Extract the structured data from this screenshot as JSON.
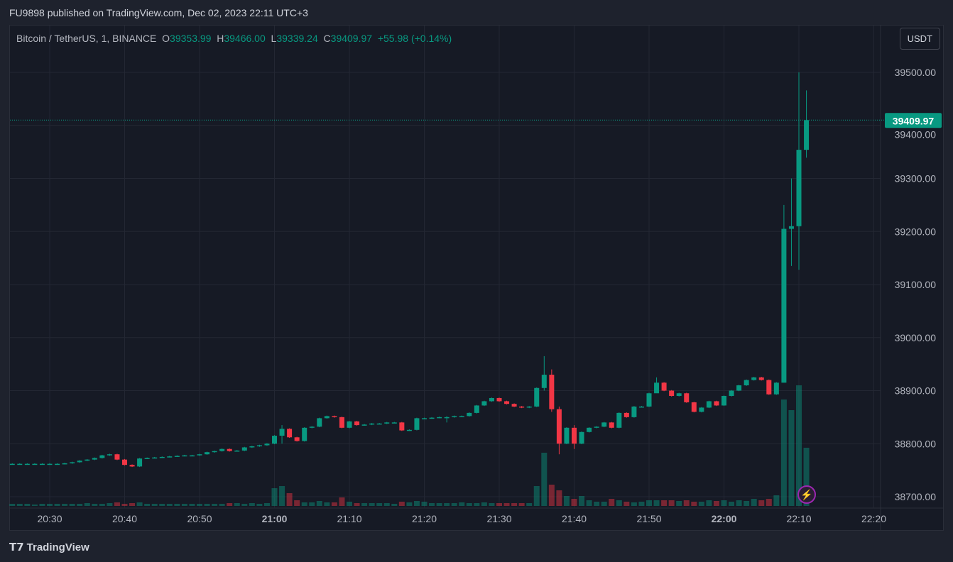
{
  "header": {
    "published": "FU9898 published on TradingView.com, Dec 02, 2023 22:11 UTC+3"
  },
  "legend": {
    "symbol": "Bitcoin / TetherUS, 1, BINANCE",
    "o_label": "O",
    "o": "39353.99",
    "h_label": "H",
    "h": "39466.00",
    "l_label": "L",
    "l": "39339.24",
    "c_label": "C",
    "c": "39409.97",
    "change": "+55.98 (+0.14%)"
  },
  "currency_button": "USDT",
  "last_price": "39409.97",
  "footer": {
    "brand": "TradingView"
  },
  "colors": {
    "up": "#089981",
    "down": "#f23645",
    "bg": "#161a25"
  },
  "chart_data": {
    "type": "candlestick",
    "interval_minutes": 1,
    "time_start": "20:25",
    "ylim": [
      38680,
      39560
    ],
    "y_ticks": [
      "39500.00",
      "39400.00",
      "39300.00",
      "39200.00",
      "39100.00",
      "39000.00",
      "38900.00",
      "38800.00",
      "38700.00"
    ],
    "x_ticks": [
      {
        "label": "20:30",
        "min": 5
      },
      {
        "label": "20:40",
        "min": 15
      },
      {
        "label": "20:50",
        "min": 25
      },
      {
        "label": "21:00",
        "min": 35,
        "bold": true
      },
      {
        "label": "21:10",
        "min": 45
      },
      {
        "label": "21:20",
        "min": 55
      },
      {
        "label": "21:30",
        "min": 65
      },
      {
        "label": "21:40",
        "min": 75
      },
      {
        "label": "21:50",
        "min": 85
      },
      {
        "label": "22:00",
        "min": 95,
        "bold": true
      },
      {
        "label": "22:10",
        "min": 105
      },
      {
        "label": "22:20",
        "min": 115
      }
    ],
    "first_open": 38762,
    "close": [
      38762,
      38762,
      38762,
      38762,
      38762,
      38762,
      38762,
      38763,
      38765,
      38768,
      38770,
      38773,
      38778,
      38780,
      38770,
      38760,
      38757,
      38772,
      38773,
      38774,
      38775,
      38776,
      38777,
      38778,
      38778,
      38780,
      38784,
      38786,
      38790,
      38786,
      38787,
      38793,
      38795,
      38797,
      38800,
      38815,
      38828,
      38812,
      38805,
      38830,
      38832,
      38848,
      38852,
      38850,
      38830,
      38842,
      38835,
      38836,
      38838,
      38838,
      38840,
      38840,
      38825,
      38826,
      38848,
      38848,
      38849,
      38850,
      38850,
      38852,
      38852,
      38858,
      38872,
      38880,
      38886,
      38880,
      38875,
      38870,
      38868,
      38870,
      38905,
      38930,
      38865,
      38800,
      38830,
      38800,
      38822,
      38830,
      38832,
      38840,
      38830,
      38858,
      38850,
      38870,
      38870,
      38895,
      38915,
      38900,
      38890,
      38895,
      38878,
      38860,
      38868,
      38880,
      38872,
      38890,
      38900,
      38910,
      38920,
      38925,
      38920,
      38893,
      38915,
      39205,
      39210,
      39354,
      39409.97
    ],
    "extremes": {
      "36": [
        38835,
        38800
      ],
      "58": [
        38852,
        38840
      ],
      "71": [
        38965,
        38900
      ],
      "72": [
        38940,
        38860
      ],
      "73": [
        38870,
        38780
      ],
      "75": [
        38835,
        38790
      ],
      "86": [
        38925,
        38900
      ],
      "103": [
        39250,
        38915
      ],
      "104": [
        39300,
        39135
      ],
      "105": [
        39500,
        39128
      ],
      "106": [
        39466,
        39339.24
      ]
    },
    "volume": [
      3,
      3,
      3,
      2,
      3,
      3,
      3,
      3,
      3,
      3,
      4,
      3,
      3,
      4,
      5,
      3,
      4,
      5,
      3,
      3,
      3,
      3,
      3,
      3,
      3,
      3,
      3,
      3,
      3,
      4,
      4,
      3,
      4,
      3,
      4,
      25,
      28,
      18,
      8,
      5,
      5,
      7,
      5,
      5,
      12,
      6,
      4,
      4,
      4,
      4,
      4,
      3,
      6,
      5,
      7,
      6,
      4,
      4,
      4,
      4,
      5,
      4,
      4,
      5,
      4,
      4,
      4,
      4,
      4,
      4,
      28,
      75,
      30,
      22,
      14,
      10,
      14,
      8,
      6,
      6,
      10,
      8,
      6,
      5,
      6,
      8,
      8,
      8,
      8,
      7,
      8,
      6,
      6,
      8,
      7,
      8,
      6,
      8,
      7,
      10,
      8,
      10,
      15,
      150,
      135,
      170,
      82
    ]
  }
}
